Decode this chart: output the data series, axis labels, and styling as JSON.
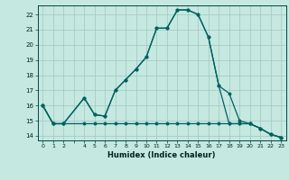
{
  "xlabel": "Humidex (Indice chaleur)",
  "bg_color": "#c5e8e0",
  "grid_color": "#a0c8c0",
  "line_color": "#006060",
  "xlim": [
    -0.5,
    23.5
  ],
  "ylim": [
    13.7,
    22.6
  ],
  "yticks": [
    14,
    15,
    16,
    17,
    18,
    19,
    20,
    21,
    22
  ],
  "xticks": [
    0,
    1,
    2,
    3,
    4,
    5,
    6,
    7,
    8,
    9,
    10,
    11,
    12,
    13,
    14,
    15,
    16,
    17,
    18,
    19,
    20,
    21,
    22,
    23
  ],
  "xtick_labels": [
    "0",
    "1",
    "2",
    "",
    "4",
    "5",
    "6",
    "7",
    "8",
    "9",
    "10",
    "11",
    "12",
    "13",
    "14",
    "15",
    "16",
    "17",
    "18",
    "19",
    "20",
    "21",
    "22",
    "23"
  ],
  "series": [
    {
      "x": [
        0,
        1,
        2,
        4,
        5,
        6,
        7,
        8,
        9,
        10,
        11,
        12,
        13,
        14,
        15,
        16,
        17,
        18,
        19,
        20,
        21,
        22,
        23
      ],
      "y": [
        16.0,
        14.8,
        14.8,
        16.5,
        15.4,
        15.3,
        17.0,
        17.7,
        18.4,
        19.2,
        21.1,
        21.1,
        22.3,
        22.3,
        22.0,
        20.5,
        17.3,
        16.8,
        15.0,
        14.8,
        14.5,
        14.1,
        13.9
      ]
    },
    {
      "x": [
        0,
        1,
        2,
        4,
        5,
        6,
        7,
        8,
        9,
        10,
        11,
        12,
        13,
        14,
        15,
        16,
        17,
        18,
        19,
        20,
        21,
        22,
        23
      ],
      "y": [
        16.0,
        14.8,
        14.8,
        14.8,
        14.8,
        14.8,
        14.8,
        14.8,
        14.8,
        14.8,
        14.8,
        14.8,
        14.8,
        14.8,
        14.8,
        14.8,
        14.8,
        14.8,
        14.8,
        14.8,
        14.5,
        14.1,
        13.9
      ]
    },
    {
      "x": [
        0,
        1,
        2,
        4,
        5,
        6,
        7,
        8,
        9,
        10,
        11,
        12,
        13,
        14,
        15,
        16,
        17,
        18,
        19,
        20,
        21,
        22,
        23
      ],
      "y": [
        16.0,
        14.8,
        14.8,
        16.5,
        15.4,
        15.3,
        17.0,
        17.7,
        18.4,
        19.2,
        21.1,
        21.1,
        22.3,
        22.3,
        22.0,
        20.5,
        17.3,
        14.8,
        14.8,
        14.8,
        14.5,
        14.1,
        13.9
      ]
    }
  ]
}
